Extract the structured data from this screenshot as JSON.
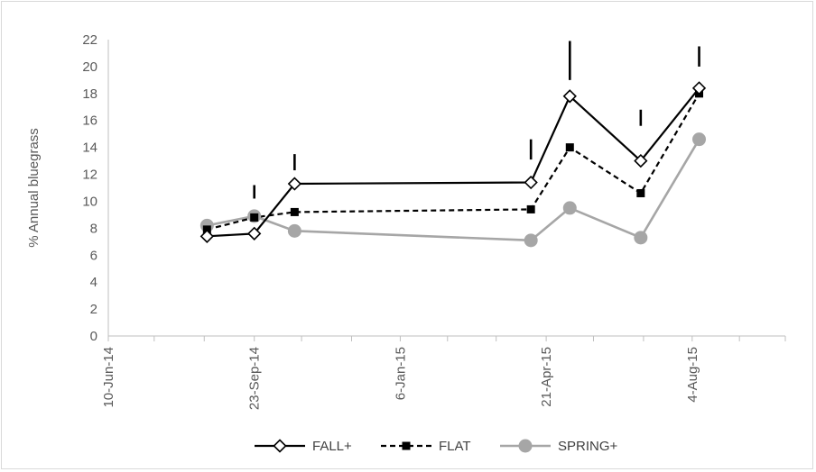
{
  "chart_data": {
    "type": "line",
    "ylabel": "% Annual bluegrass",
    "xlabel": "",
    "ylim": [
      0,
      22
    ],
    "yticks": [
      0,
      2,
      4,
      6,
      8,
      10,
      12,
      14,
      16,
      18,
      20,
      22
    ],
    "xlim": [
      "2014-06-10",
      "2015-10-10"
    ],
    "xtick_dates": [
      "2014-06-10",
      "2014-09-23",
      "2015-01-06",
      "2015-04-21",
      "2015-08-04"
    ],
    "xtick_labels": [
      "10-Jun-14",
      "23-Sep-14",
      "6-Jan-15",
      "21-Apr-15",
      "4-Aug-15"
    ],
    "minor_tick_dates": [
      "2014-06-10",
      "2014-07-13",
      "2014-08-18",
      "2014-09-23",
      "2014-10-27",
      "2014-12-02",
      "2015-01-06",
      "2015-02-09",
      "2015-03-16",
      "2015-04-21",
      "2015-05-25",
      "2015-06-30",
      "2015-08-04",
      "2015-09-07",
      "2015-10-10"
    ],
    "grid": false,
    "legend_position": "bottom",
    "series": [
      {
        "name": "FALL+",
        "style": "solid",
        "color": "#000000",
        "marker": "diamond-open",
        "x": [
          "2014-08-20",
          "2014-09-23",
          "2014-10-22",
          "2015-04-10",
          "2015-05-08",
          "2015-06-28",
          "2015-08-09"
        ],
        "y": [
          7.4,
          7.6,
          11.3,
          11.4,
          17.8,
          13.0,
          18.4
        ]
      },
      {
        "name": "FLAT",
        "style": "dashed",
        "color": "#000000",
        "marker": "square-filled",
        "x": [
          "2014-08-20",
          "2014-09-23",
          "2014-10-22",
          "2015-04-10",
          "2015-05-08",
          "2015-06-28",
          "2015-08-09"
        ],
        "y": [
          7.9,
          8.8,
          9.2,
          9.4,
          14.0,
          10.6,
          18.0
        ]
      },
      {
        "name": "SPRING+",
        "style": "solid",
        "color": "#a6a6a6",
        "marker": "circle-filled",
        "x": [
          "2014-08-20",
          "2014-09-23",
          "2014-10-22",
          "2015-04-10",
          "2015-05-08",
          "2015-06-28",
          "2015-08-09"
        ],
        "y": [
          8.2,
          8.9,
          7.8,
          7.1,
          9.5,
          7.3,
          14.6
        ]
      }
    ],
    "error_bars": [
      {
        "x": "2014-09-23",
        "y_low": 10.2,
        "y_high": 11.2
      },
      {
        "x": "2014-10-22",
        "y_low": 12.3,
        "y_high": 13.5
      },
      {
        "x": "2015-04-10",
        "y_low": 13.1,
        "y_high": 14.6
      },
      {
        "x": "2015-05-08",
        "y_low": 19.0,
        "y_high": 21.9
      },
      {
        "x": "2015-06-28",
        "y_low": 15.6,
        "y_high": 16.8
      },
      {
        "x": "2015-08-09",
        "y_low": 20.0,
        "y_high": 21.5
      }
    ]
  }
}
